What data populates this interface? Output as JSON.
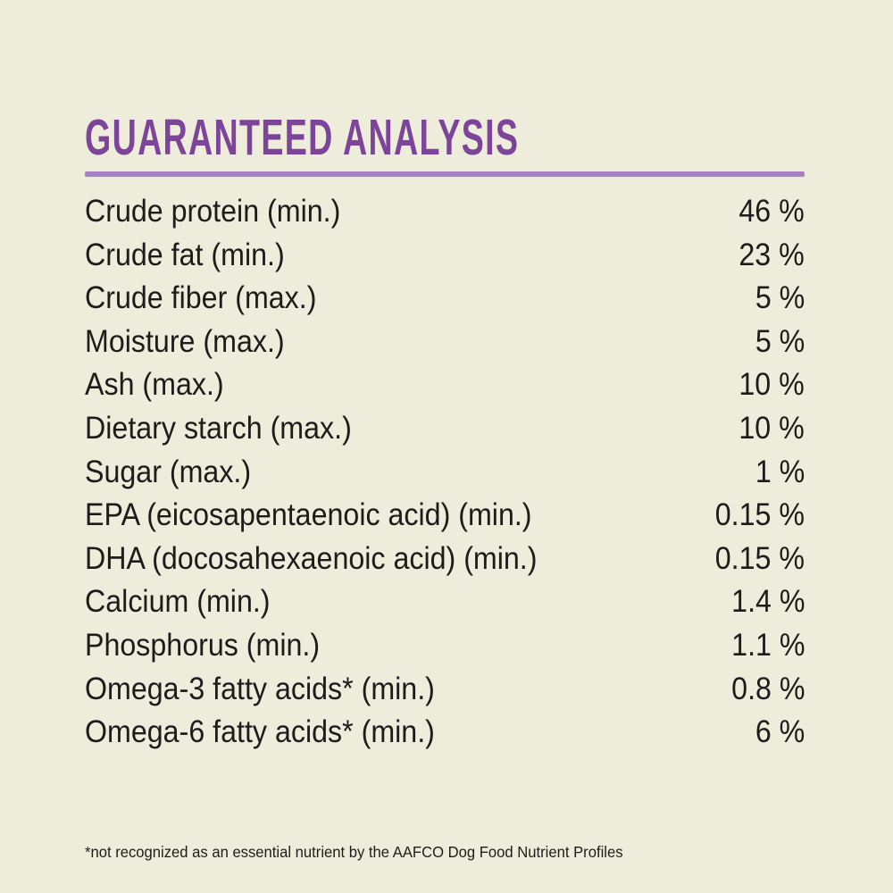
{
  "theme": {
    "background_color": "#eeecdb",
    "title_color": "#7c4599",
    "divider_color": "#a87fc5",
    "text_color": "#1e1c1a"
  },
  "analysis": {
    "title": "GUARANTEED ANALYSIS",
    "rows": [
      {
        "label": "Crude protein (min.)",
        "value": "46 %"
      },
      {
        "label": "Crude fat (min.)",
        "value": "23 %"
      },
      {
        "label": "Crude fiber (max.)",
        "value": "5 %"
      },
      {
        "label": "Moisture (max.)",
        "value": "5 %"
      },
      {
        "label": "Ash (max.)",
        "value": "10 %"
      },
      {
        "label": "Dietary starch (max.)",
        "value": "10 %"
      },
      {
        "label": "Sugar (max.)",
        "value": "1 %"
      },
      {
        "label": "EPA (eicosapentaenoic acid) (min.)",
        "value": "0.15 %"
      },
      {
        "label": "DHA (docosahexaenoic acid) (min.)",
        "value": "0.15 %"
      },
      {
        "label": "Calcium (min.)",
        "value": "1.4 %"
      },
      {
        "label": "Phosphorus (min.)",
        "value": "1.1 %"
      },
      {
        "label": "Omega-3 fatty acids* (min.)",
        "value": "0.8 %"
      },
      {
        "label": "Omega-6 fatty acids* (min.)",
        "value": "6 %"
      }
    ],
    "footnote": "*not recognized as an essential nutrient by the AAFCO Dog Food Nutrient Profiles"
  }
}
